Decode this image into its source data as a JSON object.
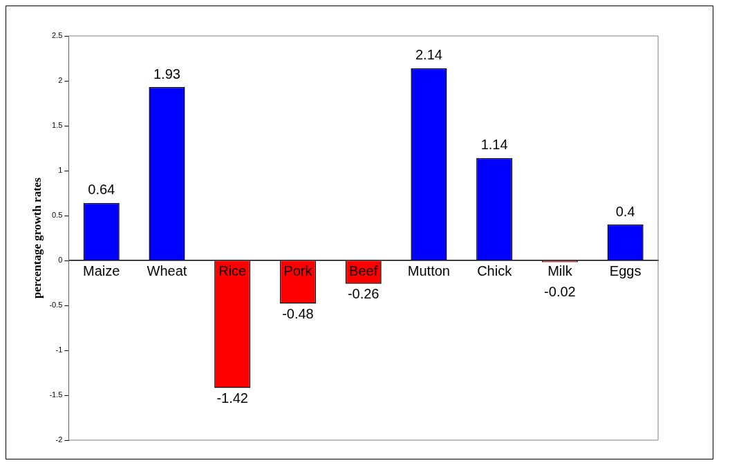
{
  "chart_data": {
    "type": "bar",
    "ylabel": "percentage growth rates",
    "categories": [
      "Maize",
      "Wheat",
      "Rice",
      "Pork",
      "Beef",
      "Mutton",
      "Chick",
      "Milk",
      "Eggs"
    ],
    "values": [
      0.64,
      1.93,
      -1.42,
      -0.48,
      -0.26,
      2.14,
      1.14,
      -0.02,
      0.4
    ],
    "colors": [
      "#0000ff",
      "#0000ff",
      "#ff0000",
      "#ff0000",
      "#ff0000",
      "#0000ff",
      "#0000ff",
      "#ff0000",
      "#0000ff"
    ],
    "ylim": [
      -2,
      2.5
    ],
    "yticks": [
      -2,
      -1.5,
      -1,
      -0.5,
      0,
      0.5,
      1,
      1.5,
      2,
      2.5
    ],
    "grid": false,
    "legend": false,
    "data_labels": true
  }
}
